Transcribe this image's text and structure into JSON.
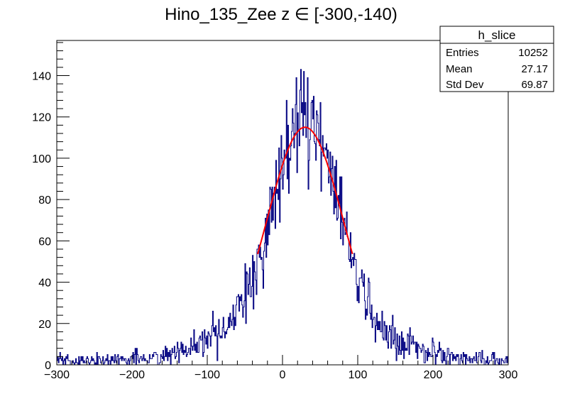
{
  "chart_data": {
    "type": "histogram",
    "title": "Hino_135_Zee z  ∈ [-300,-140)",
    "xlabel": "",
    "ylabel": "",
    "xlim": [
      -300,
      300
    ],
    "ylim": [
      0,
      157
    ],
    "x_ticks": [
      -300,
      -200,
      -100,
      0,
      100,
      200,
      300
    ],
    "x_tick_labels": [
      "−300",
      "−200",
      "−100",
      "0",
      "100",
      "200",
      "300"
    ],
    "y_ticks": [
      0,
      20,
      40,
      60,
      80,
      100,
      120,
      140
    ],
    "y_tick_labels": [
      "0",
      "20",
      "40",
      "60",
      "80",
      "100",
      "120",
      "140"
    ],
    "grid": false,
    "legend": "none",
    "histogram": {
      "name": "h_slice",
      "bins": 600,
      "range": [
        -300,
        300
      ],
      "color": "#000080",
      "approx_shape": {
        "peak_x": 30,
        "peak_y": 115,
        "max_bin_y": 150,
        "sigma": 40,
        "baseline_at_edges": 2
      }
    },
    "fit": {
      "type": "gaussian",
      "color": "#ff0000",
      "range": [
        -33,
        93
      ],
      "amplitude": 115,
      "mean": 30,
      "sigma": 51
    },
    "stats": {
      "title": "h_slice",
      "rows": [
        {
          "label": "Entries",
          "value": "10252"
        },
        {
          "label": "Mean",
          "value": "27.17"
        },
        {
          "label": "Std Dev",
          "value": "69.87"
        }
      ]
    }
  }
}
